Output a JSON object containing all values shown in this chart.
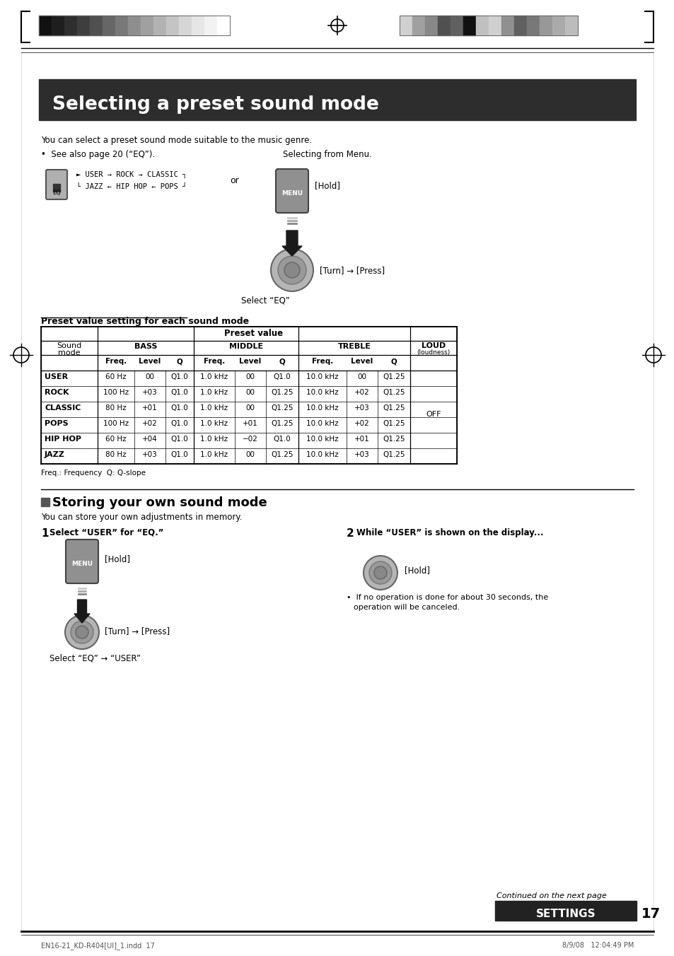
{
  "page_bg": "#ffffff",
  "header_bar_color": "#2d2d2d",
  "header_text": "Selecting a preset sound mode",
  "header_text_color": "#ffffff",
  "body_text_color": "#000000",
  "intro_line1": "You can select a preset sound mode suitable to the music genre.",
  "bullet_line": "•  See also page 20 (“EQ”).",
  "selecting_from_menu": "Selecting from Menu.",
  "eq_cycle_line1": "► USER → ROCK → CLASSIC ┐",
  "eq_cycle_line2": "└ JAZZ ← HIP HOP ← POPS ┘",
  "or_text": "or",
  "hold_text": "[Hold]",
  "turn_press_text": "[Turn] → [Press]",
  "select_eq": "Select “EQ”",
  "table_title": "Preset value setting for each sound mode",
  "table_rows": [
    [
      "USER",
      "60 Hz",
      "00",
      "Q1.0",
      "1.0 kHz",
      "00",
      "Q1.0",
      "10.0 kHz",
      "00",
      "Q1.25",
      ""
    ],
    [
      "ROCK",
      "100 Hz",
      "+03",
      "Q1.0",
      "1.0 kHz",
      "00",
      "Q1.25",
      "10.0 kHz",
      "+02",
      "Q1.25",
      ""
    ],
    [
      "CLASSIC",
      "80 Hz",
      "+01",
      "Q1.0",
      "1.0 kHz",
      "00",
      "Q1.25",
      "10.0 kHz",
      "+03",
      "Q1.25",
      "OFF"
    ],
    [
      "POPS",
      "100 Hz",
      "+02",
      "Q1.0",
      "1.0 kHz",
      "+01",
      "Q1.25",
      "10.0 kHz",
      "+02",
      "Q1.25",
      ""
    ],
    [
      "HIP HOP",
      "60 Hz",
      "+04",
      "Q1.0",
      "1.0 kHz",
      "−02",
      "Q1.0",
      "10.0 kHz",
      "+01",
      "Q1.25",
      ""
    ],
    [
      "JAZZ",
      "80 Hz",
      "+03",
      "Q1.0",
      "1.0 kHz",
      "00",
      "Q1.25",
      "10.0 kHz",
      "+03",
      "Q1.25",
      ""
    ]
  ],
  "footnote": "Freq.: Frequency  Q: Q-slope",
  "section2_title": "Storing your own sound mode",
  "step1_label": "Select “USER” for “EQ.”",
  "step1_turn_press": "[Turn] → [Press]",
  "step1_select": "Select “EQ” → “USER”",
  "step2_title": "While “USER” is shown on the display...",
  "step2_bullet": "•  If no operation is done for about 30 seconds, the",
  "step2_bullet2": "operation will be canceled.",
  "continued": "Continued on the next page",
  "settings_label": "SETTINGS",
  "page_number": "17",
  "footer_left": "EN16-21_KD-R404[UI]_1.indd  17",
  "footer_right": "8/9/08   12:04:49 PM"
}
